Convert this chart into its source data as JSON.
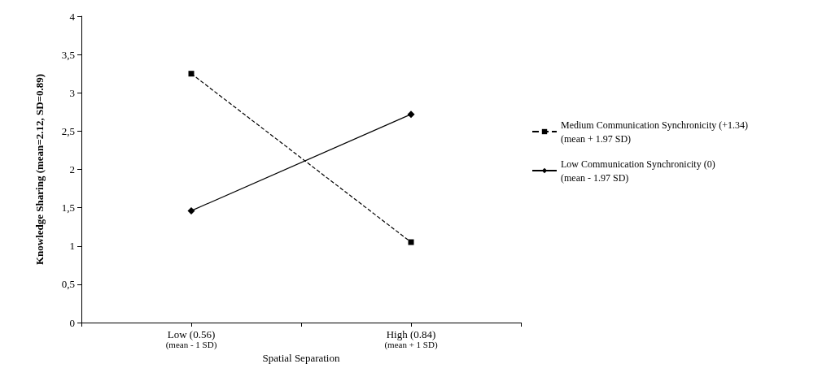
{
  "chart_data": {
    "type": "line",
    "xlabel": "Spatial Separation",
    "ylabel": "Knowledge Sharing (mean=2.12, SD=0.89)",
    "categories": [
      null,
      "Low (0.56)\n(mean - 1 SD)",
      null,
      "High (0.84)\n(mean + 1 SD)",
      null
    ],
    "series": [
      {
        "name": "Medium Communication Synchronicity (+1.34)\n(mean + 1.97 SD)",
        "color": "#000000",
        "values": [
          null,
          3.25,
          null,
          1.05,
          null
        ],
        "marker": "square",
        "line_style": "dashed"
      },
      {
        "name": "Low Communication Synchronicity (0)\n(mean - 1.97 SD)",
        "color": "#000000",
        "values": [
          null,
          1.46,
          null,
          2.72,
          null
        ],
        "marker": "diamond",
        "line_style": "solid"
      }
    ],
    "ylim": [
      0,
      4
    ],
    "yticks": [
      0,
      {
        "value": 0.5,
        "label": "0,5"
      },
      1,
      {
        "value": 1.5,
        "label": "1,5"
      },
      2,
      {
        "value": 2.5,
        "label": "2,5"
      },
      3,
      {
        "value": 3.5,
        "label": "3,5"
      },
      4
    ],
    "grid": false,
    "legend": "right"
  }
}
